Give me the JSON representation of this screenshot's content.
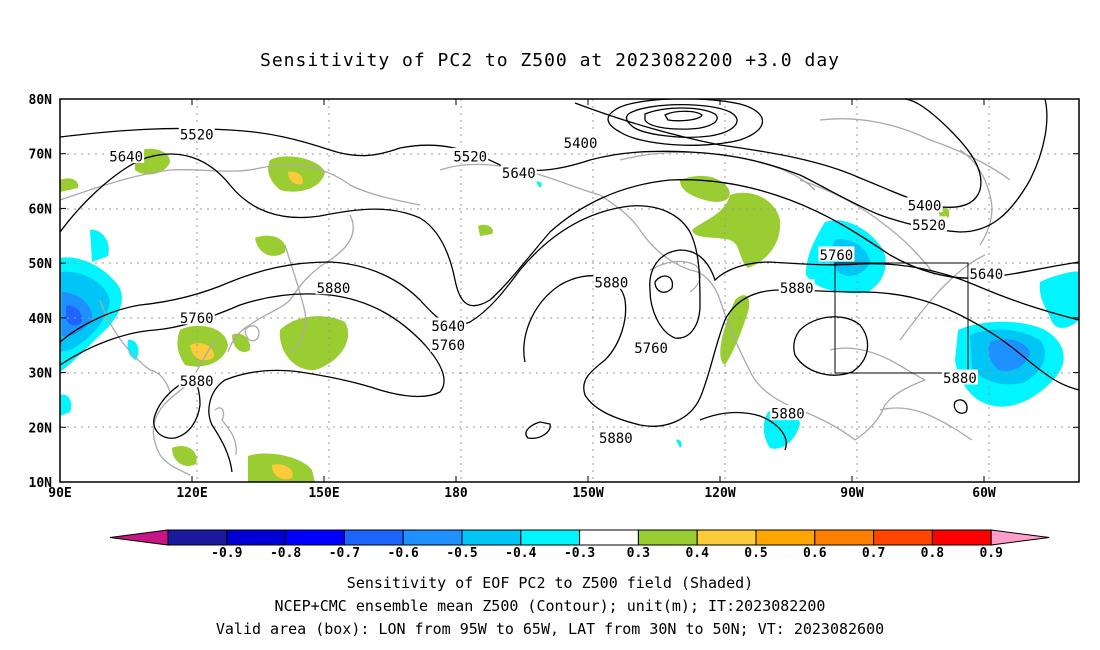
{
  "title": "Sensitivity of PC2 to Z500 at 2023082200 +3.0 day",
  "map": {
    "lat_labels": [
      "80N",
      "70N",
      "60N",
      "50N",
      "40N",
      "30N",
      "20N",
      "10N"
    ],
    "lon_labels": [
      "90E",
      "120E",
      "150E",
      "180",
      "150W",
      "120W",
      "90W",
      "60W"
    ],
    "contour_labels": [
      {
        "text": "5520",
        "lon": 121,
        "lat": 73.5
      },
      {
        "text": "5640",
        "lon": 105,
        "lat": 69.5
      },
      {
        "text": "5520",
        "lon": 183,
        "lat": 69.5
      },
      {
        "text": "5400",
        "lon": 208,
        "lat": 72.0
      },
      {
        "text": "5640",
        "lon": 194,
        "lat": 66.5
      },
      {
        "text": "5400",
        "lon": 286,
        "lat": 60.5
      },
      {
        "text": "5520",
        "lon": 287,
        "lat": 57.0
      },
      {
        "text": "5760",
        "lon": 266,
        "lat": 51.5
      },
      {
        "text": "5640",
        "lon": 300,
        "lat": 48.0
      },
      {
        "text": "5880",
        "lon": 152,
        "lat": 45.5
      },
      {
        "text": "5880",
        "lon": 215,
        "lat": 46.5
      },
      {
        "text": "5880",
        "lon": 257,
        "lat": 45.5
      },
      {
        "text": "5640",
        "lon": 178,
        "lat": 38.5
      },
      {
        "text": "5760",
        "lon": 178,
        "lat": 35.0
      },
      {
        "text": "5760",
        "lon": 121,
        "lat": 40.0
      },
      {
        "text": "5760",
        "lon": 224,
        "lat": 34.5
      },
      {
        "text": "5880",
        "lon": 121,
        "lat": 28.5
      },
      {
        "text": "5880",
        "lon": 294,
        "lat": 29.0
      },
      {
        "text": "5880",
        "lon": 255,
        "lat": 22.5
      },
      {
        "text": "5880",
        "lon": 216,
        "lat": 18.0
      }
    ],
    "colors": {
      "contour": "#000000",
      "coast": "#aaaaaa",
      "grid": "#999999",
      "pos_03_04": "#9acd32",
      "pos_04_05": "#fdca3b",
      "neg_03_04": "#00f5ff",
      "neg_04_05": "#00c6f7",
      "neg_05_06": "#1e90ff"
    }
  },
  "colorbar": {
    "labels": [
      "-0.9",
      "-0.8",
      "-0.7",
      "-0.6",
      "-0.5",
      "-0.4",
      "-0.3",
      "0.3",
      "0.4",
      "0.5",
      "0.6",
      "0.7",
      "0.8",
      "0.9"
    ],
    "colors": [
      "#1a1a9e",
      "#0000d6",
      "#0000ff",
      "#1e64ff",
      "#1e90ff",
      "#00c6f7",
      "#00f5ff",
      "#ffffff",
      "#9acd32",
      "#fdca3b",
      "#ffa500",
      "#ff7f00",
      "#ff4500",
      "#ff0000"
    ],
    "left_arrow_color": "#c71585",
    "right_arrow_color": "#ff9ec8"
  },
  "captions": [
    "Sensitivity of EOF PC2 to Z500 field (Shaded)",
    "NCEP+CMC ensemble mean Z500 (Contour); unit(m); IT:2023082200",
    "Valid area (box): LON from 95W to 65W, LAT from 30N to 50N; VT: 2023082600"
  ]
}
